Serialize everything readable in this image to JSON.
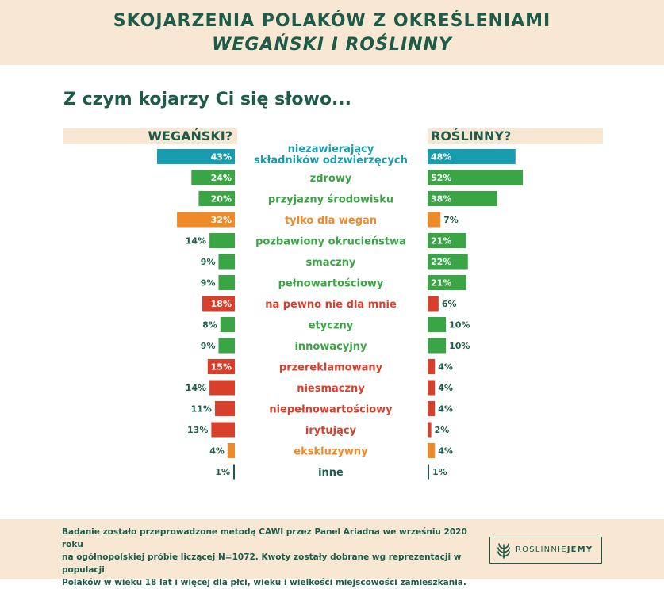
{
  "header": {
    "title_line1": "SKOJARZENIA POLAKÓW Z OKREŚLENIAMI",
    "title_line2": "WEGAŃSKI I ROŚLINNY"
  },
  "question": "Z czym kojarzy Ci się słowo...",
  "colors": {
    "banner": "#f8e7d2",
    "brand_green_dark": "#1d5c4b",
    "teal": "#1a9cb0",
    "green": "#3aa544",
    "orange": "#ef8a2b",
    "red": "#d9402b"
  },
  "chart_data": {
    "type": "bar",
    "orientation": "horizontal-diverging",
    "categories": [
      "niezawierający składników odzwierzęcych",
      "zdrowy",
      "przyjazny środowisku",
      "tylko dla wegan",
      "pozbawiony okrucieństwa",
      "smaczny",
      "pełnowartościowy",
      "na pewno nie dla mnie",
      "etyczny",
      "innowacyjny",
      "przereklamowany",
      "niesmaczny",
      "niepełnowartościowy",
      "irytujący",
      "ekskluzywny",
      "inne"
    ],
    "category_colors": [
      "#1a9cb0",
      "#3aa544",
      "#3aa544",
      "#ef8a2b",
      "#3aa544",
      "#3aa544",
      "#3aa544",
      "#d9402b",
      "#3aa544",
      "#3aa544",
      "#d9402b",
      "#d9402b",
      "#d9402b",
      "#d9402b",
      "#ef8a2b",
      "#1d5c4b"
    ],
    "series": [
      {
        "name": "WEGAŃSKI?",
        "values": [
          43,
          24,
          20,
          32,
          14,
          9,
          9,
          18,
          8,
          9,
          15,
          14,
          11,
          13,
          4,
          1
        ]
      },
      {
        "name": "ROŚLINNY?",
        "values": [
          48,
          52,
          38,
          7,
          21,
          22,
          21,
          6,
          10,
          10,
          4,
          4,
          4,
          2,
          4,
          1
        ]
      }
    ],
    "value_suffix": "%",
    "label_inside_min": 15
  },
  "footer": {
    "line1": "Badanie zostało przeprowadzone metodą CAWI przez Panel Ariadna we wrześniu 2020 roku",
    "line2": "na ogólnopolskiej próbie liczącej N=1072. Kwoty zostały dobrane wg reprezentacji w populacji",
    "line3": "Polaków w wieku 18 lat i więcej dla płci, wieku i wielkości miejscowości zamieszkania.",
    "logo_part1": "ROŚLINNIE",
    "logo_part2": "JEMY"
  }
}
